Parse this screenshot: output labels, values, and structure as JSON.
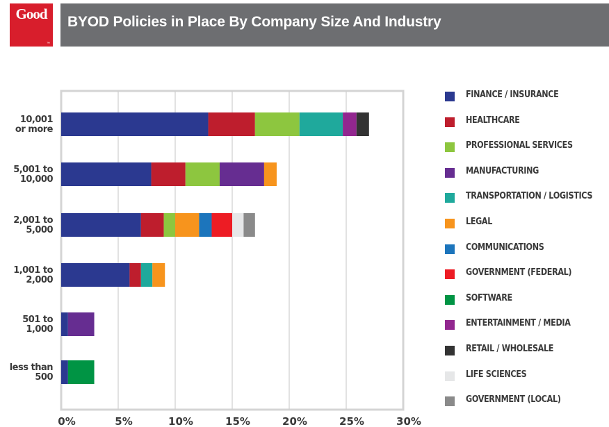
{
  "header": {
    "logo_text": "Good",
    "logo_tm": "™",
    "title": "BYOD Policies in Place By Company Size And Industry"
  },
  "chart_data": {
    "type": "bar",
    "orientation": "horizontal",
    "stacked": true,
    "title": "BYOD Policies in Place By Company Size And Industry",
    "xlim": [
      0,
      30
    ],
    "xticks": [
      "0%",
      "5%",
      "10%",
      "15%",
      "20%",
      "25%",
      "30%"
    ],
    "grid": true,
    "legend_position": "right",
    "categories": [
      [
        "10,001",
        "or more"
      ],
      [
        "5,001 to",
        "10,000"
      ],
      [
        "2,001 to",
        "5,000"
      ],
      [
        "1,001 to",
        "2,000"
      ],
      [
        "501 to",
        "1,000"
      ],
      [
        "less than",
        "500"
      ]
    ],
    "series": [
      {
        "name": "FINANCE / INSURANCE",
        "color": "#2b3990",
        "values": [
          12.9,
          7.9,
          7.0,
          6.0,
          0.6,
          0.6
        ]
      },
      {
        "name": "HEALTHCARE",
        "color": "#be1e2d",
        "values": [
          4.1,
          3.0,
          2.0,
          1.0,
          0,
          0
        ]
      },
      {
        "name": "PROFESSIONAL SERVICES",
        "color": "#8dc63f",
        "values": [
          3.9,
          3.0,
          1.0,
          0,
          0,
          0
        ]
      },
      {
        "name": "MANUFACTURING",
        "color": "#662d91",
        "values": [
          0,
          3.9,
          0,
          0,
          2.3,
          0
        ]
      },
      {
        "name": "TRANSPORTATION / LOGISTICS",
        "color": "#1fa99c",
        "values": [
          3.8,
          0,
          0,
          1.0,
          0,
          0
        ]
      },
      {
        "name": "LEGAL",
        "color": "#f7941d",
        "values": [
          0,
          1.1,
          2.1,
          1.1,
          0,
          0
        ]
      },
      {
        "name": "COMMUNICATIONS",
        "color": "#1c75bc",
        "values": [
          0,
          0,
          1.1,
          0,
          0,
          0
        ]
      },
      {
        "name": "GOVERNMENT (FEDERAL)",
        "color": "#ed1c24",
        "values": [
          0,
          0,
          1.8,
          0,
          0,
          0
        ]
      },
      {
        "name": "SOFTWARE",
        "color": "#009444",
        "values": [
          0,
          0,
          0,
          0,
          0,
          2.3
        ]
      },
      {
        "name": "ENTERTAINMENT / MEDIA",
        "color": "#92278f",
        "values": [
          1.2,
          0,
          0,
          0,
          0,
          0
        ]
      },
      {
        "name": "RETAIL / WHOLESALE",
        "color": "#333333",
        "values": [
          1.1,
          0,
          0,
          0,
          0,
          0
        ]
      },
      {
        "name": "LIFE SCIENCES",
        "color": "#e6e7e8",
        "values": [
          0,
          0,
          1.0,
          0,
          0,
          0
        ]
      },
      {
        "name": "GOVERNMENT (LOCAL)",
        "color": "#8a8a8a",
        "values": [
          0,
          0,
          1.0,
          0,
          0,
          0
        ]
      }
    ]
  }
}
